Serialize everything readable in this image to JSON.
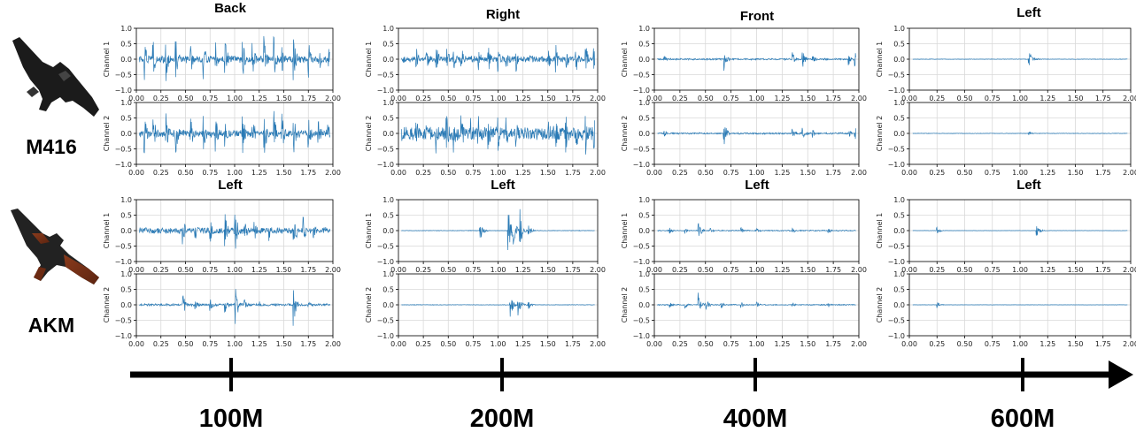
{
  "guns": [
    {
      "name": "M416",
      "icon": "m416-rifle-icon"
    },
    {
      "name": "AKM",
      "icon": "akm-rifle-icon"
    }
  ],
  "distance_axis": {
    "labels": [
      "100M",
      "200M",
      "400M",
      "600M"
    ]
  },
  "colors": {
    "waveform": "#2a7ab5",
    "grid": "#d9d9d9",
    "axis": "#000000"
  },
  "chart_data": [
    {
      "type": "line",
      "gun": "M416",
      "distance": "100M",
      "title": "Back",
      "series": [
        {
          "name": "Channel 1",
          "bursts": [
            [
              0.08,
              0.75
            ],
            [
              0.17,
              0.7
            ],
            [
              0.3,
              0.75
            ],
            [
              0.4,
              0.7
            ],
            [
              0.55,
              0.7
            ],
            [
              0.68,
              0.7
            ],
            [
              0.8,
              0.75
            ],
            [
              0.9,
              0.72
            ],
            [
              1.08,
              0.7
            ],
            [
              1.18,
              0.7
            ],
            [
              1.3,
              0.8
            ],
            [
              1.4,
              0.75
            ],
            [
              1.48,
              0.7
            ],
            [
              1.6,
              0.75
            ],
            [
              1.75,
              0.65
            ],
            [
              1.85,
              0.65
            ],
            [
              1.95,
              0.6
            ]
          ],
          "noise": 0.13
        },
        {
          "name": "Channel 2",
          "bursts": [
            [
              0.08,
              0.75
            ],
            [
              0.17,
              0.7
            ],
            [
              0.3,
              0.75
            ],
            [
              0.4,
              0.72
            ],
            [
              0.55,
              0.7
            ],
            [
              0.68,
              0.72
            ],
            [
              0.8,
              0.75
            ],
            [
              0.9,
              0.72
            ],
            [
              1.08,
              0.7
            ],
            [
              1.18,
              0.7
            ],
            [
              1.3,
              0.8
            ],
            [
              1.4,
              0.75
            ],
            [
              1.48,
              0.7
            ],
            [
              1.6,
              0.75
            ],
            [
              1.75,
              0.65
            ],
            [
              1.85,
              0.65
            ],
            [
              1.95,
              0.6
            ]
          ],
          "noise": 0.13
        }
      ],
      "xlim": [
        0,
        2
      ],
      "ylim": [
        -1,
        1
      ],
      "xticks": [
        "0.00",
        "0.25",
        "0.50",
        "0.75",
        "1.00",
        "1.25",
        "1.50",
        "1.75",
        "2.00"
      ],
      "yticks": [
        "−1.0",
        "−0.5",
        "0.0",
        "0.5",
        "1.0"
      ],
      "grid": true
    },
    {
      "type": "line",
      "gun": "M416",
      "distance": "200M",
      "title": "Right",
      "series": [
        {
          "name": "Channel 1",
          "bursts": [
            [
              0.18,
              0.4
            ],
            [
              0.28,
              0.4
            ],
            [
              0.38,
              0.5
            ],
            [
              0.48,
              0.5
            ],
            [
              0.55,
              0.55
            ],
            [
              0.63,
              0.5
            ],
            [
              0.73,
              0.45
            ],
            [
              0.8,
              0.45
            ],
            [
              0.9,
              0.5
            ],
            [
              1.0,
              0.45
            ],
            [
              1.08,
              0.45
            ],
            [
              1.18,
              0.45
            ],
            [
              1.5,
              0.45
            ],
            [
              1.58,
              0.5
            ],
            [
              1.68,
              0.5
            ],
            [
              1.78,
              0.5
            ],
            [
              1.88,
              0.5
            ],
            [
              1.96,
              0.5
            ]
          ],
          "noise": 0.12
        },
        {
          "name": "Channel 2",
          "bursts": [
            [
              0.18,
              0.5
            ],
            [
              0.28,
              0.6
            ],
            [
              0.38,
              0.65
            ],
            [
              0.48,
              0.7
            ],
            [
              0.55,
              0.75
            ],
            [
              0.63,
              0.7
            ],
            [
              0.73,
              0.7
            ],
            [
              0.8,
              0.65
            ],
            [
              0.9,
              0.65
            ],
            [
              1.0,
              0.6
            ],
            [
              1.08,
              0.55
            ],
            [
              1.18,
              0.5
            ],
            [
              1.5,
              0.6
            ],
            [
              1.58,
              0.65
            ],
            [
              1.68,
              0.65
            ],
            [
              1.78,
              0.7
            ],
            [
              1.88,
              0.7
            ],
            [
              1.96,
              0.7
            ]
          ],
          "noise": 0.25
        }
      ],
      "xlim": [
        0,
        2
      ],
      "ylim": [
        -1,
        1
      ],
      "xticks": [
        "0.00",
        "0.25",
        "0.50",
        "0.75",
        "1.00",
        "1.25",
        "1.50",
        "1.75",
        "2.00"
      ],
      "yticks": [
        "−1.0",
        "−0.5",
        "0.0",
        "0.5",
        "1.0"
      ],
      "grid": true
    },
    {
      "type": "line",
      "gun": "M416",
      "distance": "400M",
      "title": "Front",
      "series": [
        {
          "name": "Channel 1",
          "bursts": [
            [
              0.1,
              0.1
            ],
            [
              0.68,
              0.45
            ],
            [
              1.35,
              0.25
            ],
            [
              1.45,
              0.3
            ],
            [
              1.55,
              0.15
            ],
            [
              1.9,
              0.2
            ],
            [
              1.96,
              0.25
            ]
          ],
          "noise": 0.03
        },
        {
          "name": "Channel 2",
          "bursts": [
            [
              0.1,
              0.1
            ],
            [
              0.68,
              0.45
            ],
            [
              1.35,
              0.25
            ],
            [
              1.45,
              0.3
            ],
            [
              1.55,
              0.15
            ],
            [
              1.9,
              0.2
            ],
            [
              1.96,
              0.25
            ]
          ],
          "noise": 0.03
        }
      ],
      "xlim": [
        0,
        2
      ],
      "ylim": [
        -1,
        1
      ],
      "xticks": [
        "0.00",
        "0.25",
        "0.50",
        "0.75",
        "1.00",
        "1.25",
        "1.50",
        "1.75",
        "2.00"
      ],
      "yticks": [
        "−1.0",
        "−0.5",
        "0.0",
        "0.5",
        "1.0"
      ],
      "grid": true
    },
    {
      "type": "line",
      "gun": "M416",
      "distance": "600M",
      "title": "Left",
      "series": [
        {
          "name": "Channel 1",
          "bursts": [
            [
              1.08,
              0.3
            ],
            [
              1.15,
              0.05
            ]
          ],
          "noise": 0.01
        },
        {
          "name": "Channel 2",
          "bursts": [
            [
              1.08,
              0.1
            ]
          ],
          "noise": 0.01
        }
      ],
      "xlim": [
        0,
        2
      ],
      "ylim": [
        -1,
        1
      ],
      "xticks": [
        "0.00",
        "0.25",
        "0.50",
        "0.75",
        "1.00",
        "1.25",
        "1.50",
        "1.75",
        "2.00"
      ],
      "yticks": [
        "−1.0",
        "−0.5",
        "0.0",
        "0.5",
        "1.0"
      ],
      "grid": true
    },
    {
      "type": "line",
      "gun": "AKM",
      "distance": "100M",
      "title": "Left",
      "series": [
        {
          "name": "Channel 1",
          "bursts": [
            [
              0.47,
              0.55
            ],
            [
              0.6,
              0.45
            ],
            [
              0.75,
              0.5
            ],
            [
              0.9,
              0.6
            ],
            [
              1.0,
              0.9
            ],
            [
              1.1,
              0.5
            ],
            [
              1.2,
              0.45
            ],
            [
              1.35,
              0.35
            ],
            [
              1.6,
              0.9
            ],
            [
              1.7,
              0.45
            ],
            [
              1.8,
              0.3
            ]
          ],
          "noise": 0.12
        },
        {
          "name": "Channel 2",
          "bursts": [
            [
              0.47,
              0.5
            ],
            [
              0.6,
              0.2
            ],
            [
              0.75,
              0.25
            ],
            [
              0.9,
              0.3
            ],
            [
              1.0,
              0.95
            ],
            [
              1.1,
              0.2
            ],
            [
              1.25,
              0.15
            ],
            [
              1.6,
              0.7
            ],
            [
              1.75,
              0.15
            ]
          ],
          "noise": 0.04
        }
      ],
      "xlim": [
        0,
        2
      ],
      "ylim": [
        -1,
        1
      ],
      "xticks": [
        "0.00",
        "0.25",
        "0.50",
        "0.75",
        "1.00",
        "1.25",
        "1.50",
        "1.75",
        "2.00"
      ],
      "yticks": [
        "−1.0",
        "−0.5",
        "0.0",
        "0.5",
        "1.0"
      ],
      "grid": true
    },
    {
      "type": "line",
      "gun": "AKM",
      "distance": "200M",
      "title": "Left",
      "series": [
        {
          "name": "Channel 1",
          "bursts": [
            [
              0.82,
              0.4
            ],
            [
              1.1,
              0.8
            ],
            [
              1.15,
              0.7
            ],
            [
              1.22,
              0.7
            ],
            [
              1.3,
              0.3
            ]
          ],
          "noise": 0.01
        },
        {
          "name": "Channel 2",
          "bursts": [
            [
              1.12,
              0.45
            ],
            [
              1.2,
              0.4
            ],
            [
              1.3,
              0.2
            ]
          ],
          "noise": 0.01
        }
      ],
      "xlim": [
        0,
        2
      ],
      "ylim": [
        -1,
        1
      ],
      "xticks": [
        "0.00",
        "0.25",
        "0.50",
        "0.75",
        "1.00",
        "1.25",
        "1.50",
        "1.75",
        "2.00"
      ],
      "yticks": [
        "−1.0",
        "−0.5",
        "0.0",
        "0.5",
        "1.0"
      ],
      "grid": true
    },
    {
      "type": "line",
      "gun": "AKM",
      "distance": "400M",
      "title": "Left",
      "series": [
        {
          "name": "Channel 1",
          "bursts": [
            [
              0.15,
              0.1
            ],
            [
              0.3,
              0.1
            ],
            [
              0.43,
              0.35
            ],
            [
              0.55,
              0.1
            ],
            [
              0.85,
              0.1
            ],
            [
              1.0,
              0.1
            ],
            [
              1.35,
              0.1
            ],
            [
              1.7,
              0.1
            ]
          ],
          "noise": 0.02
        },
        {
          "name": "Channel 2",
          "bursts": [
            [
              0.15,
              0.1
            ],
            [
              0.3,
              0.15
            ],
            [
              0.43,
              0.4
            ],
            [
              0.5,
              0.3
            ],
            [
              0.65,
              0.15
            ],
            [
              0.85,
              0.1
            ],
            [
              1.0,
              0.1
            ],
            [
              1.35,
              0.1
            ],
            [
              1.7,
              0.1
            ]
          ],
          "noise": 0.02
        }
      ],
      "xlim": [
        0,
        2
      ],
      "ylim": [
        -1,
        1
      ],
      "xticks": [
        "0.00",
        "0.25",
        "0.50",
        "0.75",
        "1.00",
        "1.25",
        "1.50",
        "1.75",
        "2.00"
      ],
      "yticks": [
        "−1.0",
        "−0.5",
        "0.0",
        "0.5",
        "1.0"
      ],
      "grid": true
    },
    {
      "type": "line",
      "gun": "AKM",
      "distance": "600M",
      "title": "Left",
      "series": [
        {
          "name": "Channel 1",
          "bursts": [
            [
              0.25,
              0.12
            ],
            [
              1.15,
              0.2
            ]
          ],
          "noise": 0.005
        },
        {
          "name": "Channel 2",
          "bursts": [
            [
              0.25,
              0.12
            ]
          ],
          "noise": 0.005
        }
      ],
      "xlim": [
        0,
        2
      ],
      "ylim": [
        -1,
        1
      ],
      "xticks": [
        "0.00",
        "0.25",
        "0.50",
        "0.75",
        "1.00",
        "1.25",
        "1.50",
        "1.75",
        "2.00"
      ],
      "yticks": [
        "−1.0",
        "−0.5",
        "0.0",
        "0.5",
        "1.0"
      ],
      "grid": true
    }
  ]
}
